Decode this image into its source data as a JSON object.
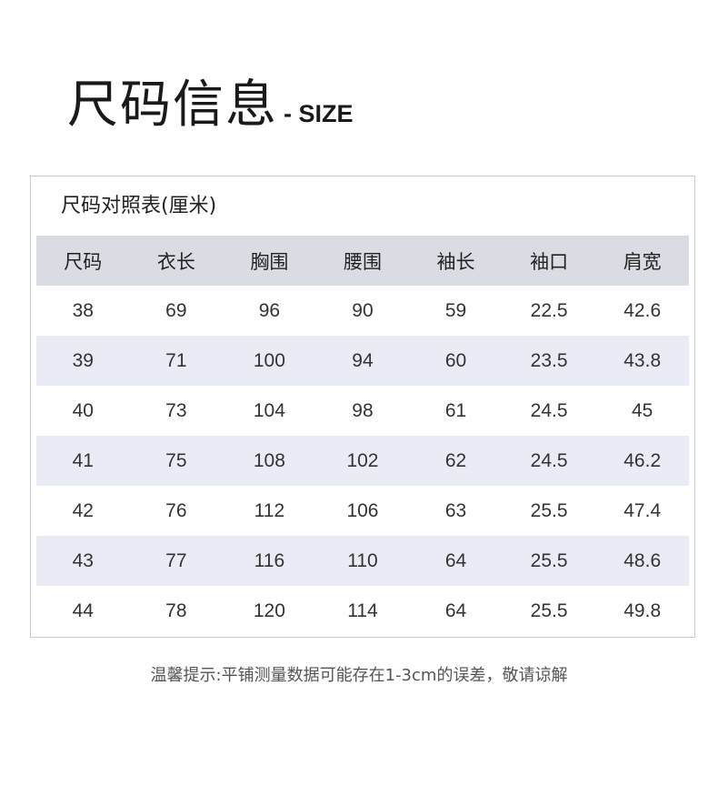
{
  "title": {
    "cn": "尺码信息",
    "en": "- SIZE"
  },
  "table": {
    "caption": "尺码对照表(厘米)",
    "headers": [
      "尺码",
      "衣长",
      "胸围",
      "腰围",
      "袖长",
      "袖口",
      "肩宽"
    ],
    "rows": [
      [
        "38",
        "69",
        "96",
        "90",
        "59",
        "22.5",
        "42.6"
      ],
      [
        "39",
        "71",
        "100",
        "94",
        "60",
        "23.5",
        "43.8"
      ],
      [
        "40",
        "73",
        "104",
        "98",
        "61",
        "24.5",
        "45"
      ],
      [
        "41",
        "75",
        "108",
        "102",
        "62",
        "24.5",
        "46.2"
      ],
      [
        "42",
        "76",
        "112",
        "106",
        "63",
        "25.5",
        "47.4"
      ],
      [
        "43",
        "77",
        "116",
        "110",
        "64",
        "25.5",
        "48.6"
      ],
      [
        "44",
        "78",
        "120",
        "114",
        "64",
        "25.5",
        "49.8"
      ]
    ],
    "colors": {
      "header_bg": "#d9dce3",
      "alt_row_bg": "#e9ecf5"
    }
  },
  "note": "温馨提示:平铺测量数据可能存在1-3cm的误差，敬请谅解"
}
